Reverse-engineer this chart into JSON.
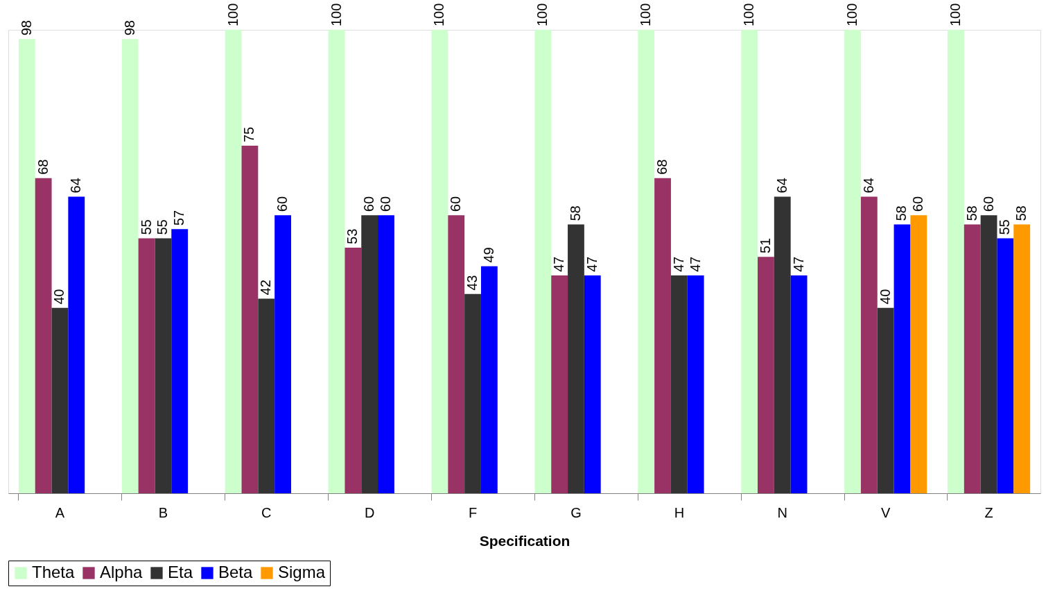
{
  "chart_data": {
    "type": "bar",
    "xlabel": "Specification",
    "categories": [
      "A",
      "B",
      "C",
      "D",
      "F",
      "G",
      "H",
      "N",
      "V",
      "Z"
    ],
    "series": [
      {
        "name": "Theta",
        "color": "#ccffcc",
        "values": [
          98,
          98,
          100,
          100,
          100,
          100,
          100,
          100,
          100,
          100
        ]
      },
      {
        "name": "Alpha",
        "color": "#993366",
        "values": [
          68,
          55,
          75,
          53,
          60,
          47,
          68,
          51,
          64,
          58
        ]
      },
      {
        "name": "Eta",
        "color": "#333333",
        "values": [
          40,
          55,
          42,
          60,
          43,
          58,
          47,
          64,
          40,
          60
        ]
      },
      {
        "name": "Beta",
        "color": "#0000ff",
        "values": [
          64,
          57,
          60,
          60,
          49,
          47,
          47,
          47,
          58,
          55
        ]
      },
      {
        "name": "Sigma",
        "color": "#ff9900",
        "values": [
          null,
          null,
          null,
          null,
          null,
          null,
          null,
          null,
          60,
          58
        ]
      }
    ],
    "ylim": [
      0,
      100
    ],
    "data_labels": true,
    "legend": "bottom",
    "grid": false,
    "tick_labels": "x"
  }
}
